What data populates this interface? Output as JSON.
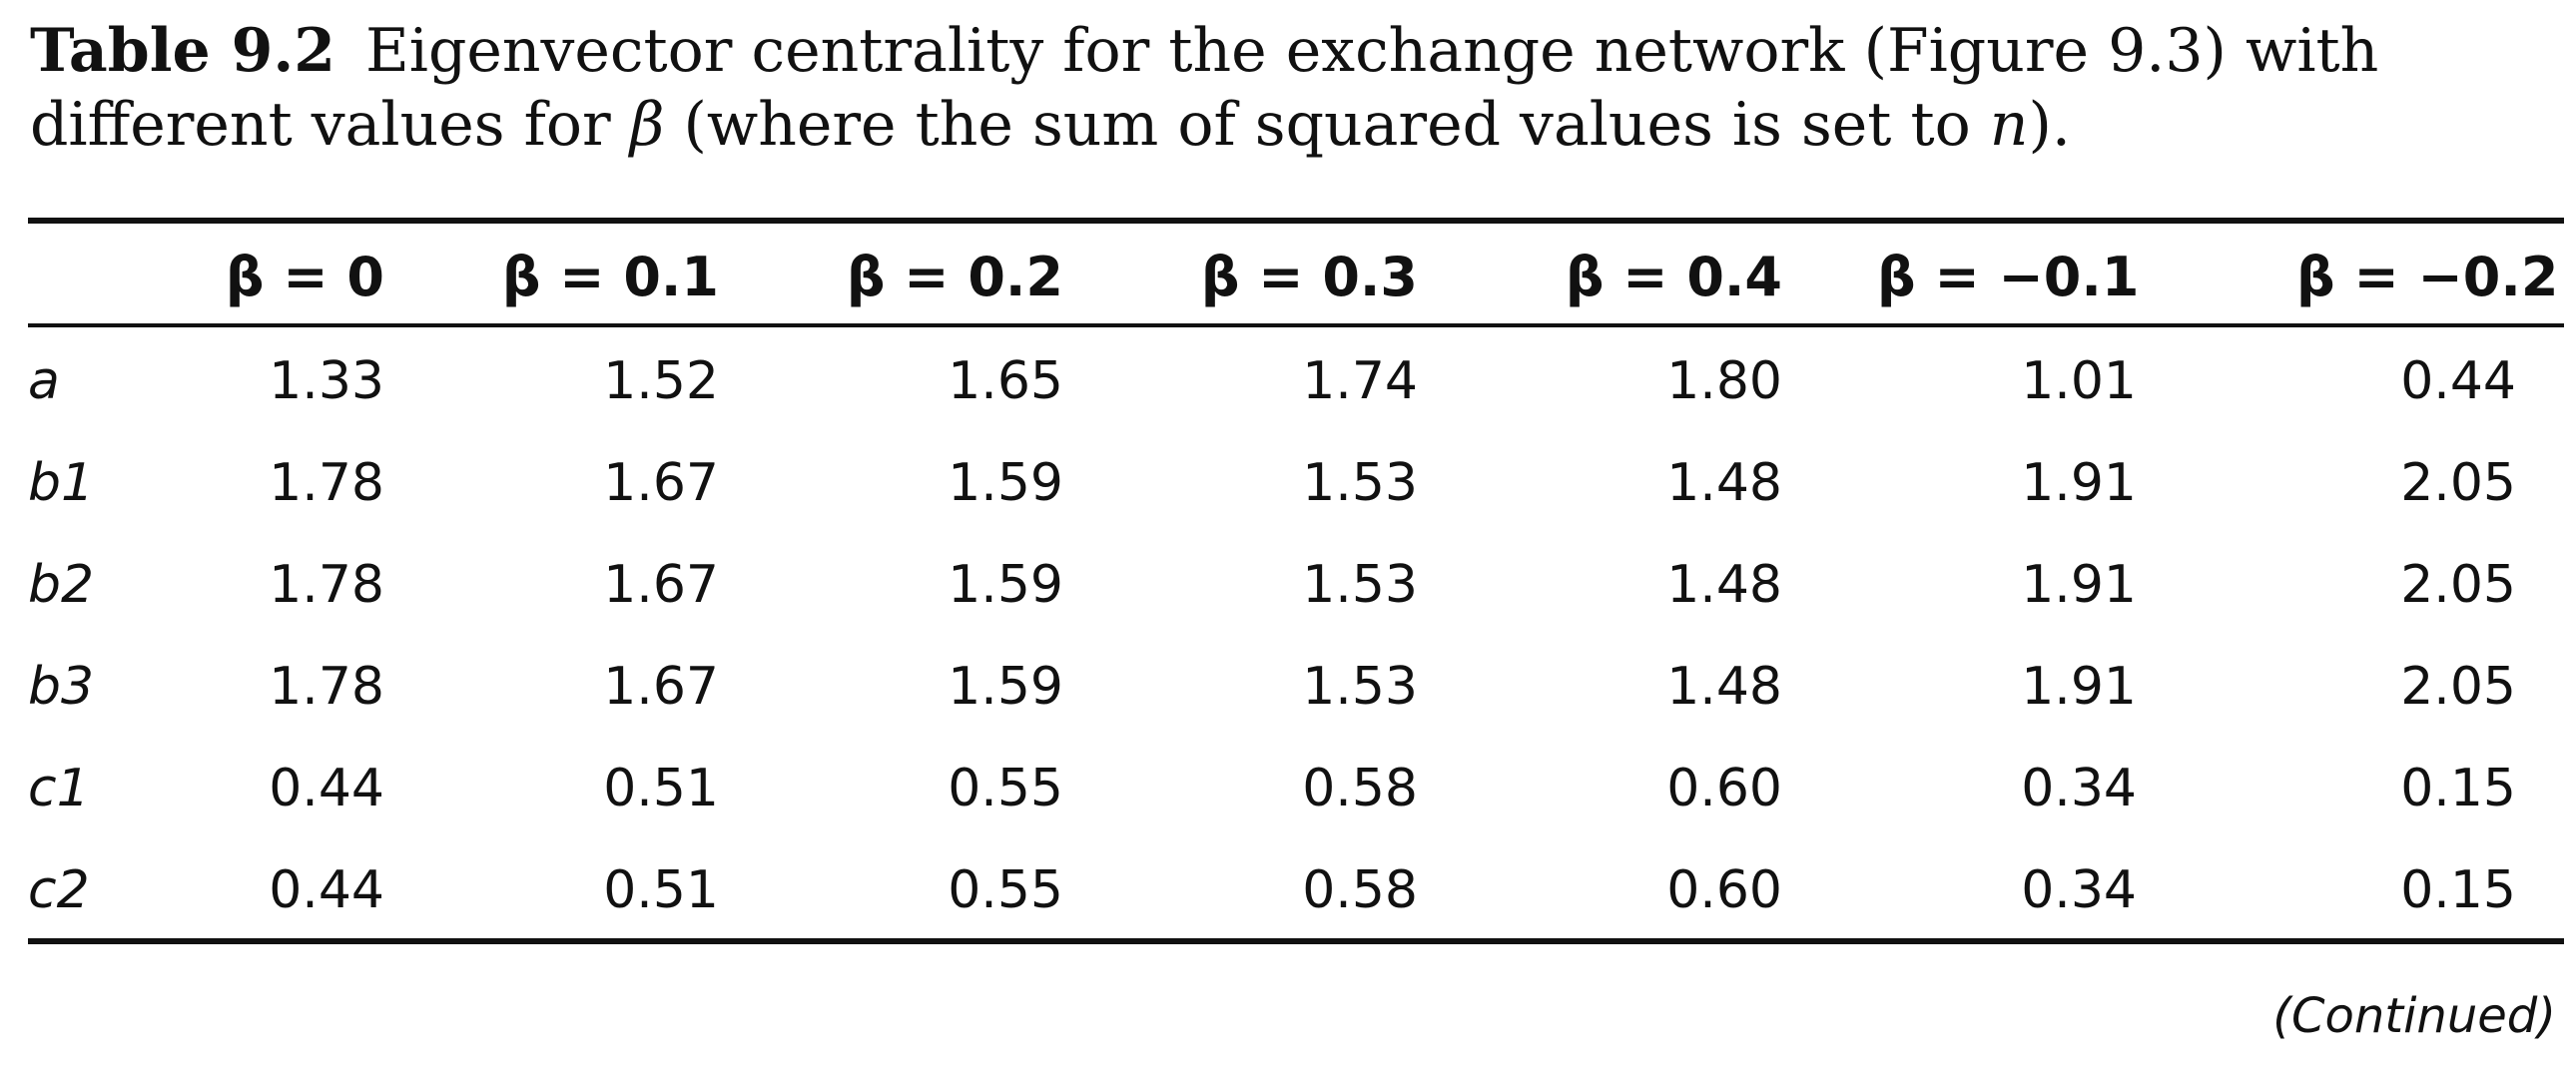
{
  "caption": {
    "label": "Table 9.2",
    "text_before": "Eigenvector centrality for the exchange network (Figure 9.3) with different values for ",
    "beta": "β",
    "text_middle": " (where the sum of squared values is set to ",
    "n": "n",
    "text_after": ")."
  },
  "table": {
    "columns": [
      "β = 0",
      "β = 0.1",
      "β = 0.2",
      "β = 0.3",
      "β = 0.4",
      "β = −0.1",
      "β = −0.2"
    ],
    "rows": [
      {
        "label": "a",
        "values": [
          "1.33",
          "1.52",
          "1.65",
          "1.74",
          "1.80",
          "1.01",
          "0.44"
        ]
      },
      {
        "label": "b1",
        "values": [
          "1.78",
          "1.67",
          "1.59",
          "1.53",
          "1.48",
          "1.91",
          "2.05"
        ]
      },
      {
        "label": "b2",
        "values": [
          "1.78",
          "1.67",
          "1.59",
          "1.53",
          "1.48",
          "1.91",
          "2.05"
        ]
      },
      {
        "label": "b3",
        "values": [
          "1.78",
          "1.67",
          "1.59",
          "1.53",
          "1.48",
          "1.91",
          "2.05"
        ]
      },
      {
        "label": "c1",
        "values": [
          "0.44",
          "0.51",
          "0.55",
          "0.58",
          "0.60",
          "0.34",
          "0.15"
        ]
      },
      {
        "label": "c2",
        "values": [
          "0.44",
          "0.51",
          "0.55",
          "0.58",
          "0.60",
          "0.34",
          "0.15"
        ]
      }
    ]
  },
  "footer": {
    "continued": "(Continued)"
  }
}
